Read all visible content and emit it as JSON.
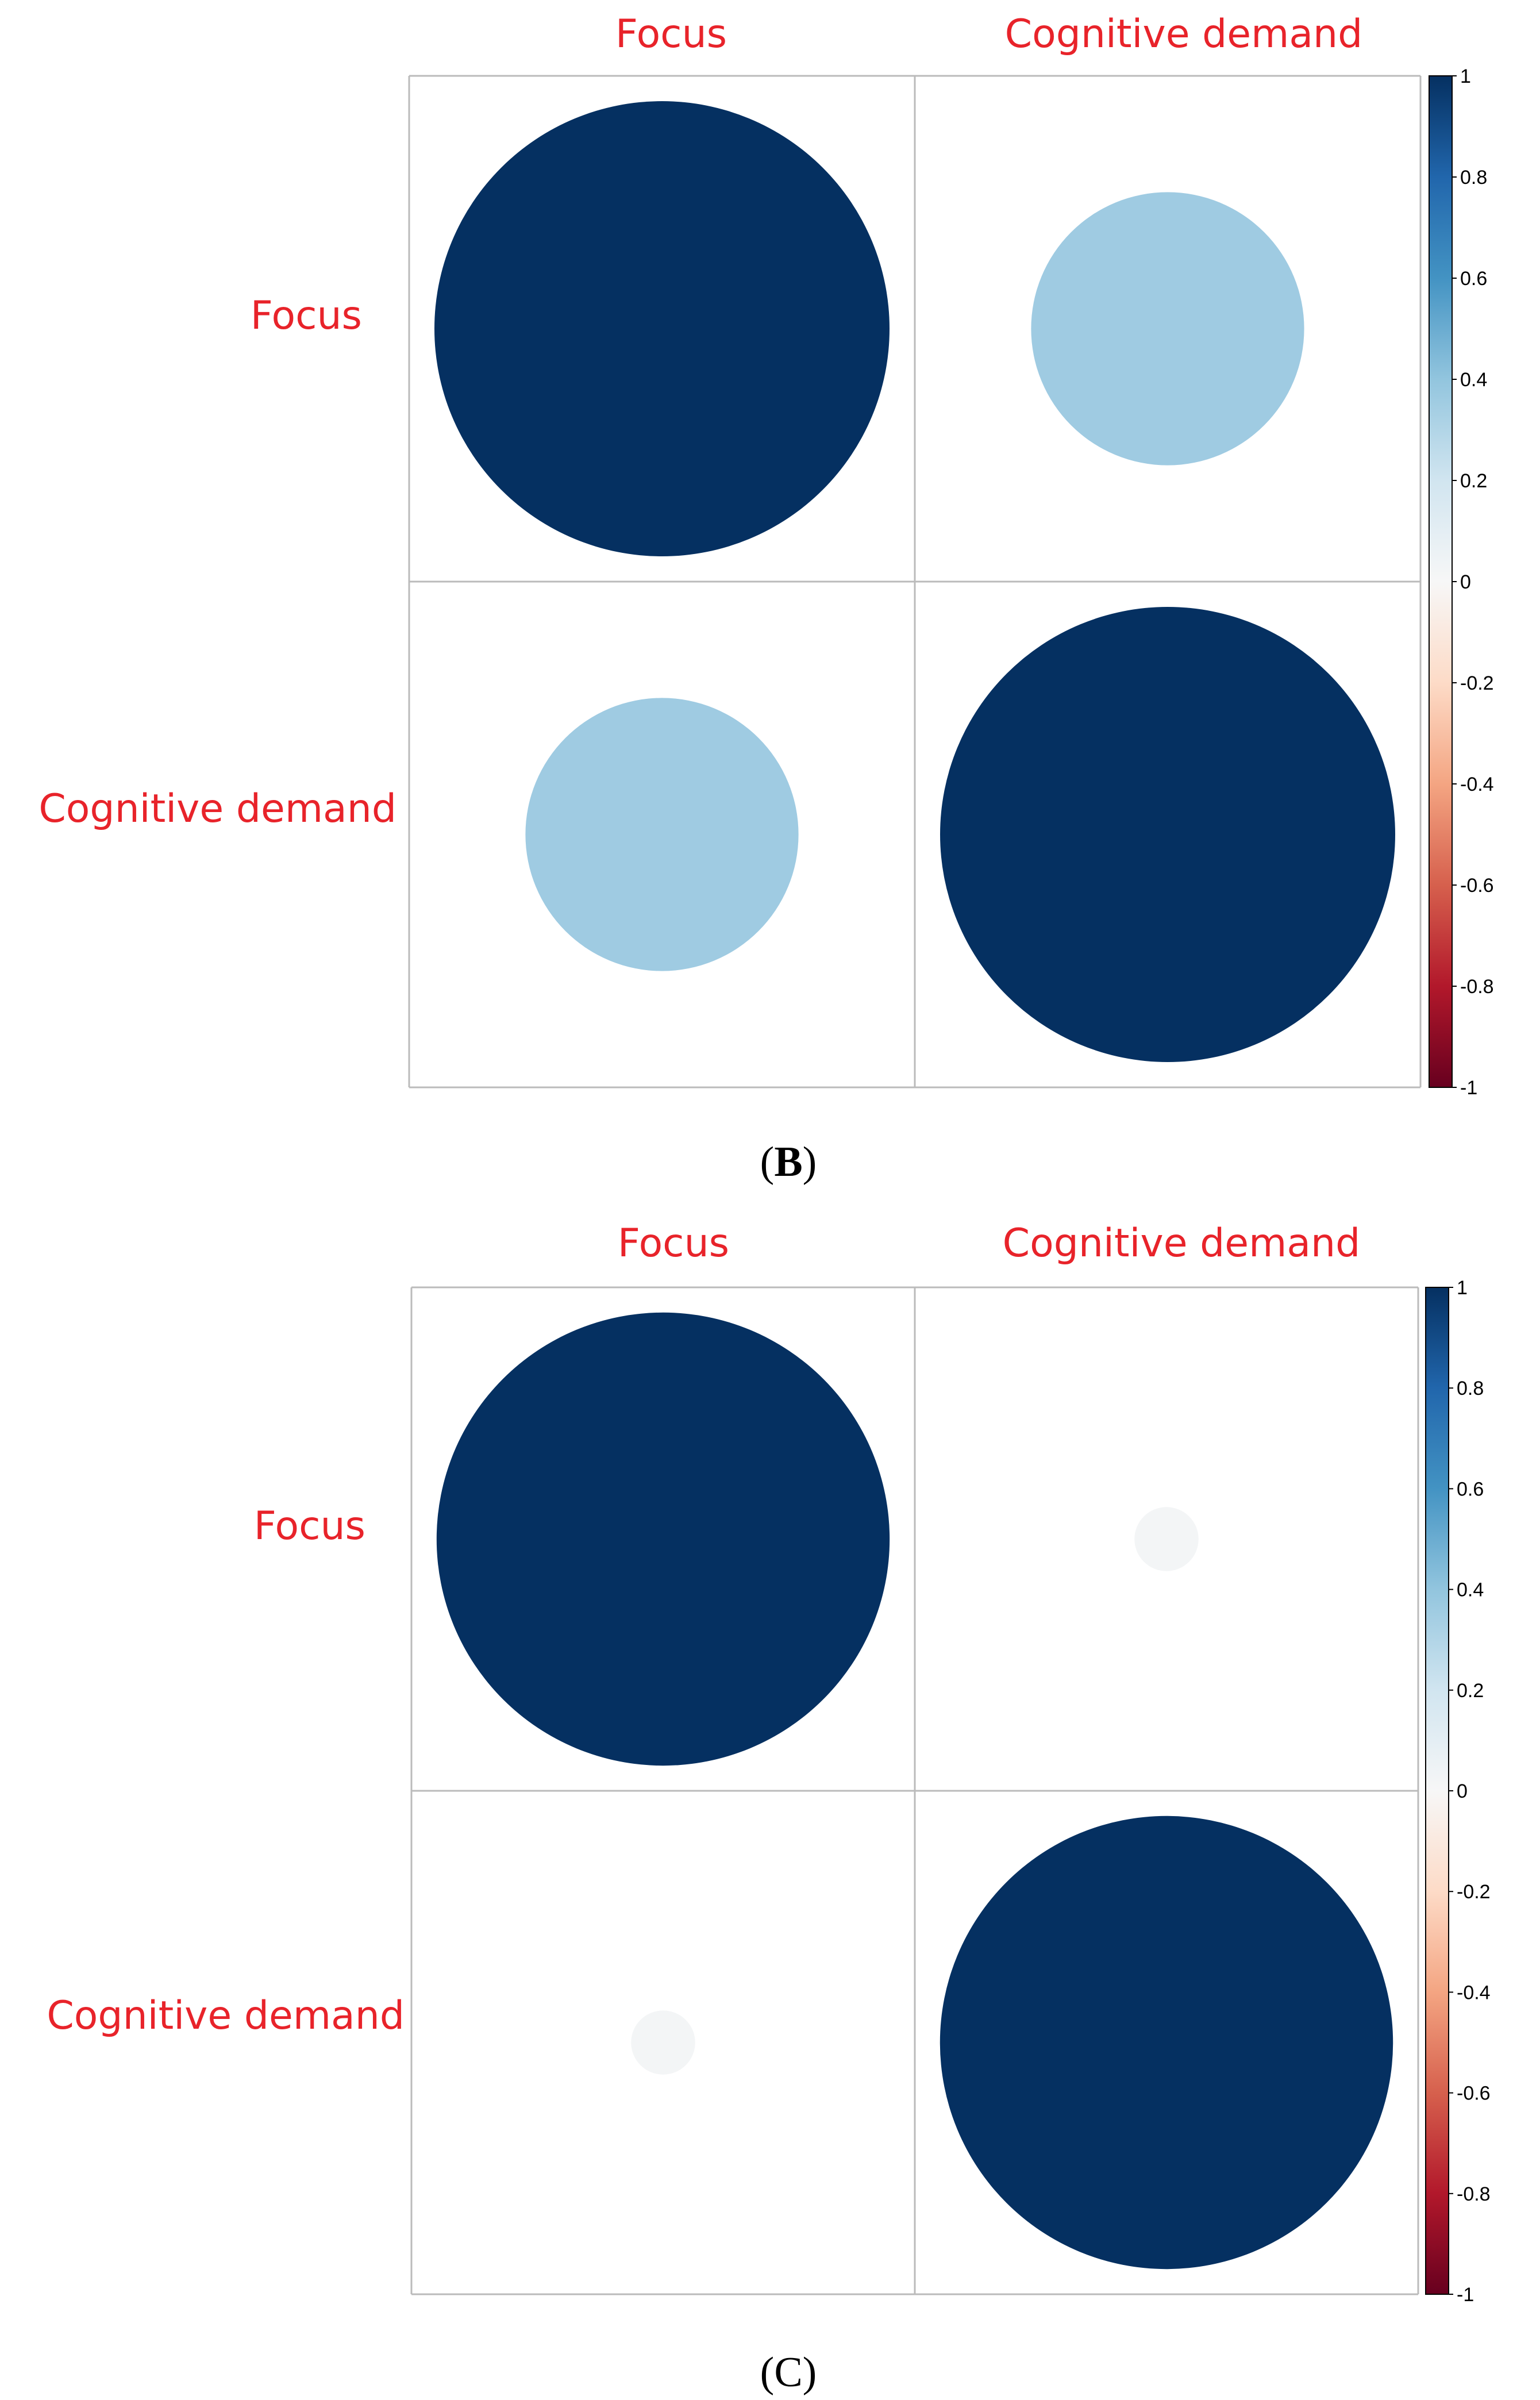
{
  "chart_data": [
    {
      "type": "heatmap",
      "panel_label": "B",
      "variables": [
        "Focus",
        "Cognitive demand"
      ],
      "matrix": [
        [
          1.0,
          0.36
        ],
        [
          0.36,
          1.0
        ]
      ],
      "colorbar_ticks": [
        1,
        0.8,
        0.6,
        0.4,
        0.2,
        0,
        -0.2,
        -0.4,
        -0.6,
        -0.8,
        -1
      ],
      "value_range": [
        -1,
        1
      ]
    },
    {
      "type": "heatmap",
      "panel_label": "C",
      "variables": [
        "Focus",
        "Cognitive demand"
      ],
      "matrix": [
        [
          1.0,
          0.02
        ],
        [
          0.02,
          1.0
        ]
      ],
      "colorbar_ticks": [
        1,
        0.8,
        0.6,
        0.4,
        0.2,
        0,
        -0.2,
        -0.4,
        -0.6,
        -0.8,
        -1
      ],
      "value_range": [
        -1,
        1
      ]
    }
  ],
  "colors": {
    "label": "#e8232a",
    "grid": "#bbbbbb",
    "scale": [
      "#67001f",
      "#b2182b",
      "#d6604d",
      "#f4a582",
      "#fddbc7",
      "#f7f7f7",
      "#d1e5f0",
      "#92c5de",
      "#4393c3",
      "#2166ac",
      "#053061"
    ]
  }
}
